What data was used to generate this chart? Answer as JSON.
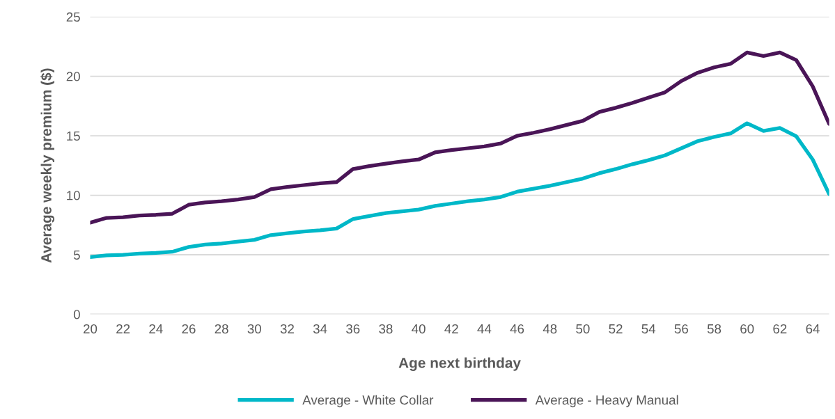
{
  "chart_data": {
    "type": "line",
    "xlabel": "Age next birthday",
    "ylabel": "Average weekly premium ($)",
    "x": [
      20,
      21,
      22,
      23,
      24,
      25,
      26,
      27,
      28,
      29,
      30,
      31,
      32,
      33,
      34,
      35,
      36,
      37,
      38,
      39,
      40,
      41,
      42,
      43,
      44,
      45,
      46,
      47,
      48,
      49,
      50,
      51,
      52,
      53,
      54,
      55,
      56,
      57,
      58,
      59,
      60,
      61,
      62,
      63,
      64,
      65
    ],
    "series": [
      {
        "name": "Average - White Collar",
        "color": "#00b8c8",
        "values": [
          4.8,
          4.95,
          5.0,
          5.1,
          5.15,
          5.25,
          5.65,
          5.85,
          5.95,
          6.1,
          6.25,
          6.65,
          6.8,
          6.95,
          7.05,
          7.2,
          8.0,
          8.25,
          8.5,
          8.65,
          8.8,
          9.1,
          9.3,
          9.5,
          9.65,
          9.85,
          10.3,
          10.55,
          10.8,
          11.1,
          11.4,
          11.85,
          12.2,
          12.6,
          12.95,
          13.35,
          13.95,
          14.55,
          14.9,
          15.2,
          16.05,
          15.4,
          15.65,
          14.95,
          13.0,
          10.1
        ]
      },
      {
        "name": "Average - Heavy Manual",
        "color": "#4a1557",
        "values": [
          7.7,
          8.1,
          8.15,
          8.3,
          8.35,
          8.45,
          9.2,
          9.4,
          9.5,
          9.65,
          9.85,
          10.5,
          10.7,
          10.85,
          11.0,
          11.1,
          12.2,
          12.45,
          12.65,
          12.85,
          13.0,
          13.6,
          13.8,
          13.95,
          14.1,
          14.35,
          15.0,
          15.25,
          15.55,
          15.9,
          16.25,
          17.0,
          17.35,
          17.75,
          18.2,
          18.65,
          19.6,
          20.3,
          20.75,
          21.05,
          22.0,
          21.7,
          22.0,
          21.35,
          19.15,
          16.0
        ]
      }
    ],
    "xlim": [
      20,
      65
    ],
    "xticks": [
      20,
      22,
      24,
      26,
      28,
      30,
      32,
      34,
      36,
      38,
      40,
      42,
      44,
      46,
      48,
      50,
      52,
      54,
      56,
      58,
      60,
      62,
      64
    ],
    "ylim": [
      0,
      25
    ],
    "yticks": [
      0,
      5,
      10,
      15,
      20,
      25
    ],
    "grid": "y",
    "legend": "bottom",
    "marker": "none",
    "line_style": "solid"
  }
}
